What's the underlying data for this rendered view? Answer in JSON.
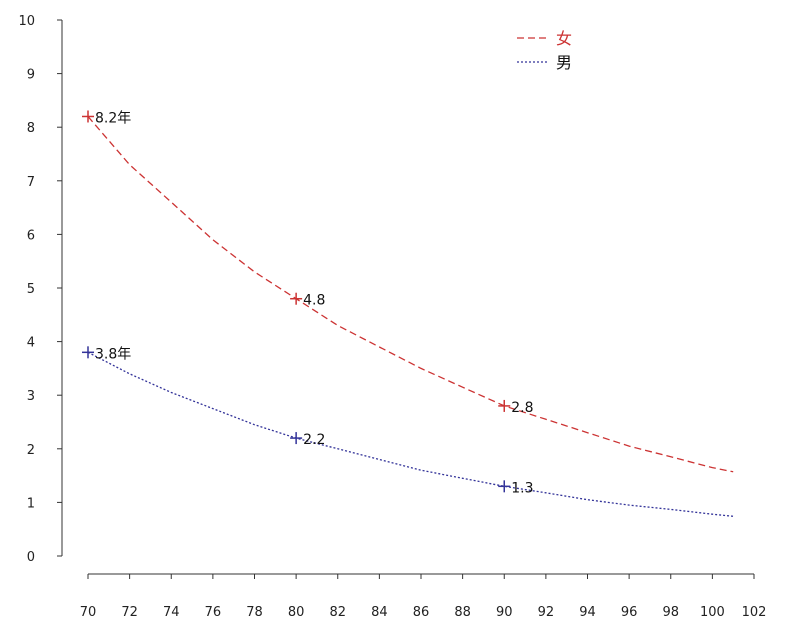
{
  "chart_data": {
    "type": "line",
    "xlabel": "",
    "ylabel": "",
    "xlim": [
      70,
      102
    ],
    "ylim": [
      0,
      10
    ],
    "x_ticks": [
      "70",
      "72",
      "74",
      "76",
      "78",
      "80",
      "82",
      "84",
      "86",
      "88",
      "90",
      "92",
      "94",
      "96",
      "98",
      "100",
      "102"
    ],
    "y_ticks": [
      "0",
      "1",
      "2",
      "3",
      "4",
      "5",
      "6",
      "7",
      "8",
      "9",
      "10"
    ],
    "grid": false,
    "legend_position": "top-right",
    "series": [
      {
        "name": "女",
        "color": "#cc3333",
        "line_style": "dashed",
        "curve": [
          [
            70,
            8.2
          ],
          [
            72,
            7.3
          ],
          [
            74,
            6.6
          ],
          [
            76,
            5.9
          ],
          [
            78,
            5.3
          ],
          [
            80,
            4.8
          ],
          [
            82,
            4.3
          ],
          [
            84,
            3.9
          ],
          [
            86,
            3.5
          ],
          [
            88,
            3.15
          ],
          [
            90,
            2.8
          ],
          [
            92,
            2.55
          ],
          [
            94,
            2.3
          ],
          [
            96,
            2.05
          ],
          [
            98,
            1.85
          ],
          [
            100,
            1.65
          ],
          [
            101,
            1.57
          ]
        ],
        "points": [
          {
            "x": 70,
            "y": 8.2,
            "label": "8.2年"
          },
          {
            "x": 80,
            "y": 4.8,
            "label": "4.8"
          },
          {
            "x": 90,
            "y": 2.8,
            "label": "2.8"
          }
        ]
      },
      {
        "name": "男",
        "color": "#333399",
        "line_style": "dotted",
        "curve": [
          [
            70,
            3.8
          ],
          [
            72,
            3.4
          ],
          [
            74,
            3.05
          ],
          [
            76,
            2.75
          ],
          [
            78,
            2.45
          ],
          [
            80,
            2.2
          ],
          [
            82,
            2.0
          ],
          [
            84,
            1.8
          ],
          [
            86,
            1.6
          ],
          [
            88,
            1.45
          ],
          [
            90,
            1.3
          ],
          [
            92,
            1.18
          ],
          [
            94,
            1.05
          ],
          [
            96,
            0.95
          ],
          [
            98,
            0.87
          ],
          [
            100,
            0.78
          ],
          [
            101,
            0.74
          ]
        ],
        "points": [
          {
            "x": 70,
            "y": 3.8,
            "label": "3.8年"
          },
          {
            "x": 80,
            "y": 2.2,
            "label": "2.2"
          },
          {
            "x": 90,
            "y": 1.3,
            "label": "1.3"
          }
        ]
      }
    ]
  }
}
